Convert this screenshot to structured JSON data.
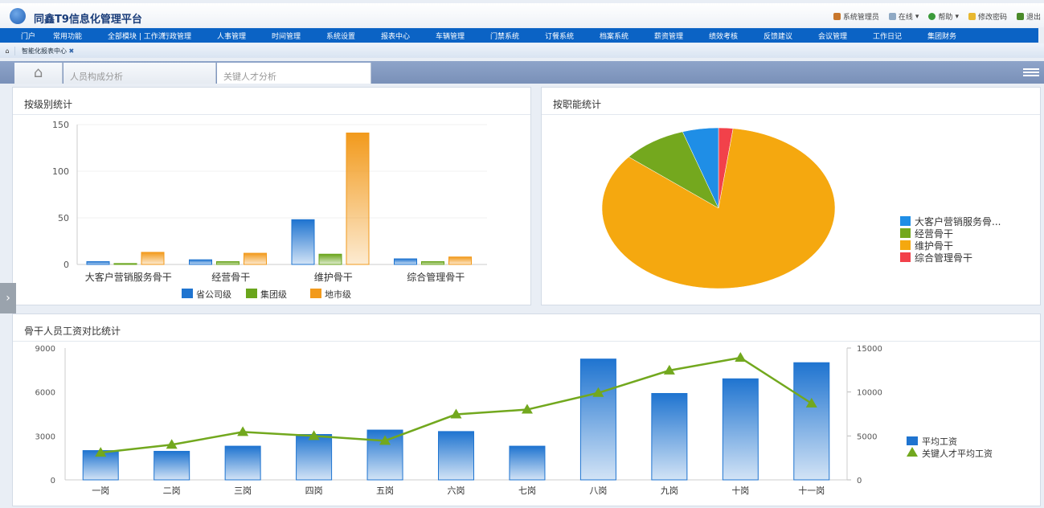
{
  "header": {
    "title": "同鑫T9信息化管理平台",
    "links": [
      "系统管理员",
      "在线",
      "帮助",
      "修改密码",
      "退出"
    ]
  },
  "menu": [
    "门户",
    "常用功能",
    "全部模块 | 工作流",
    "行政管理",
    "人事管理",
    "时间管理",
    "系统设置",
    "报表中心",
    "车辆管理",
    "门禁系统",
    "订餐系统",
    "档案系统",
    "薪资管理",
    "绩效考核",
    "反馈建议",
    "会议管理",
    "工作日记",
    "集团财务"
  ],
  "breadcrumb": {
    "tab": "智能化报表中心"
  },
  "tabs": [
    "人员构成分析",
    "关键人才分析"
  ],
  "chart_data": [
    {
      "type": "bar",
      "title": "按级别统计",
      "categories": [
        "大客户营销服务骨干",
        "经营骨干",
        "维护骨干",
        "综合管理骨干"
      ],
      "ylim": [
        0,
        150
      ],
      "yticks": [
        0,
        50,
        100,
        150
      ],
      "legend": "bottom",
      "grid": true,
      "series": [
        {
          "name": "省公司级",
          "color": "#1f74d0",
          "values": [
            3,
            5,
            48,
            6
          ]
        },
        {
          "name": "集团级",
          "color": "#6aa51c",
          "values": [
            1,
            3,
            11,
            3
          ]
        },
        {
          "name": "地市级",
          "color": "#f29a1c",
          "values": [
            13,
            12,
            141,
            8
          ]
        }
      ]
    },
    {
      "type": "pie",
      "title": "按职能统计",
      "legend": "right",
      "slices": [
        {
          "name": "大客户营销服务骨...",
          "color": "#1f8ee6",
          "value": 5
        },
        {
          "name": "经营骨干",
          "color": "#74a81e",
          "value": 9
        },
        {
          "name": "维护骨干",
          "color": "#f5a80f",
          "value": 84
        },
        {
          "name": "综合管理骨干",
          "color": "#f2414a",
          "value": 2
        }
      ]
    },
    {
      "type": "bar-line",
      "title": "骨干人员工资对比统计",
      "categories": [
        "一岗",
        "二岗",
        "三岗",
        "四岗",
        "五岗",
        "六岗",
        "七岗",
        "八岗",
        "九岗",
        "十岗",
        "十一岗"
      ],
      "ylim": [
        0,
        9000
      ],
      "yticks": [
        0,
        3000,
        6000,
        9000
      ],
      "y2lim": [
        0,
        15000
      ],
      "y2ticks": [
        0,
        5000,
        10000,
        15000
      ],
      "legend": "right",
      "series": [
        {
          "name": "平均工资",
          "type": "bar",
          "axis": "left",
          "color": "#1f74d0",
          "values": [
            2000,
            1950,
            2300,
            3100,
            3400,
            3300,
            2300,
            8250,
            5900,
            6900,
            8000
          ]
        },
        {
          "name": "关键人才平均工资",
          "type": "line",
          "axis": "right",
          "color": "#72a81e",
          "values": [
            3100,
            4000,
            5450,
            5000,
            4450,
            7450,
            8000,
            9900,
            12450,
            13900,
            8700
          ]
        }
      ]
    }
  ]
}
